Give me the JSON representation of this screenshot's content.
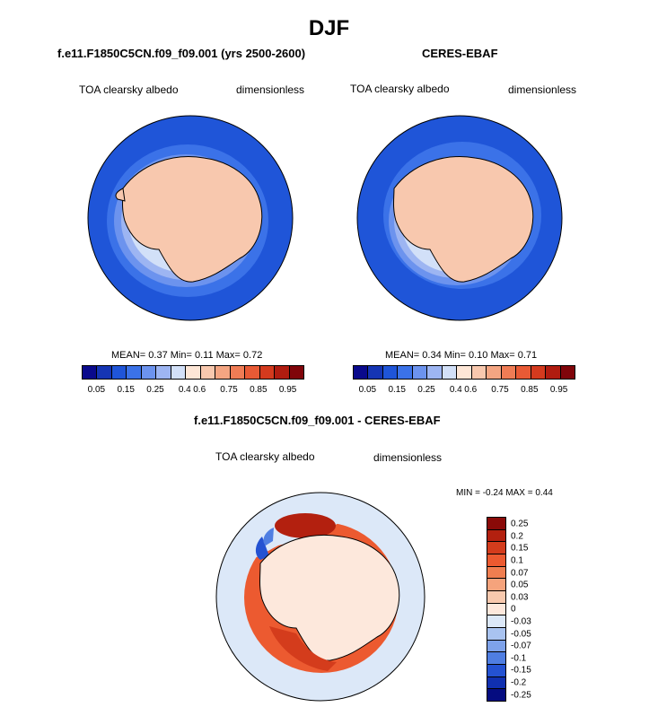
{
  "title": "DJF",
  "panels": [
    {
      "title": "f.e11.F1850C5CN.f09_f09.001 (yrs 2500-2600)",
      "left_label": "TOA clearsky albedo",
      "right_label": "dimensionless",
      "stats": {
        "mean_label": "MEAN=",
        "mean": "0.37",
        "min_label": "Min=",
        "min": "0.11",
        "max_label": "Max=",
        "max": "0.72"
      }
    },
    {
      "title": "CERES-EBAF",
      "left_label": "TOA clearsky albedo",
      "right_label": "dimensionless",
      "stats": {
        "mean_label": "MEAN=",
        "mean": "0.34",
        "min_label": "Min=",
        "min": "0.10",
        "max_label": "Max=",
        "max": "0.71"
      }
    },
    {
      "title": "f.e11.F1850C5CN.f09_f09.001 - CERES-EBAF",
      "left_label": "TOA clearsky albedo",
      "right_label": "dimensionless",
      "stats_text": "MIN =  -0.24 MAX =   0.44"
    }
  ],
  "colorbar_main": {
    "colors": [
      "#0a0a8c",
      "#1535b4",
      "#1f55d8",
      "#3b72e8",
      "#6c93ee",
      "#9db5f2",
      "#d2e0f8",
      "#fde6d6",
      "#f8c8ae",
      "#f4a582",
      "#ef7c55",
      "#e85a35",
      "#d43a1e",
      "#b01c10",
      "#80050a"
    ],
    "ticks": [
      "0.05",
      "0.15",
      "0.25",
      "0.4",
      "0.6",
      "0.75",
      "0.85",
      "0.95"
    ]
  },
  "colorbar_diff": {
    "colors": [
      "#8a0a08",
      "#b3200f",
      "#d43c1c",
      "#ec5a30",
      "#f07e50",
      "#f5a37c",
      "#f8c9ae",
      "#fde8dc",
      "#dce8f8",
      "#a9c3f0",
      "#7ea2ea",
      "#4f7ee2",
      "#2452d2",
      "#1030b0",
      "#050c80"
    ],
    "ticks": [
      "0.25",
      "0.2",
      "0.15",
      "0.1",
      "0.07",
      "0.05",
      "0.03",
      "0",
      "-0.03",
      "-0.05",
      "-0.07",
      "-0.1",
      "-0.15",
      "-0.2",
      "-0.25"
    ]
  }
}
